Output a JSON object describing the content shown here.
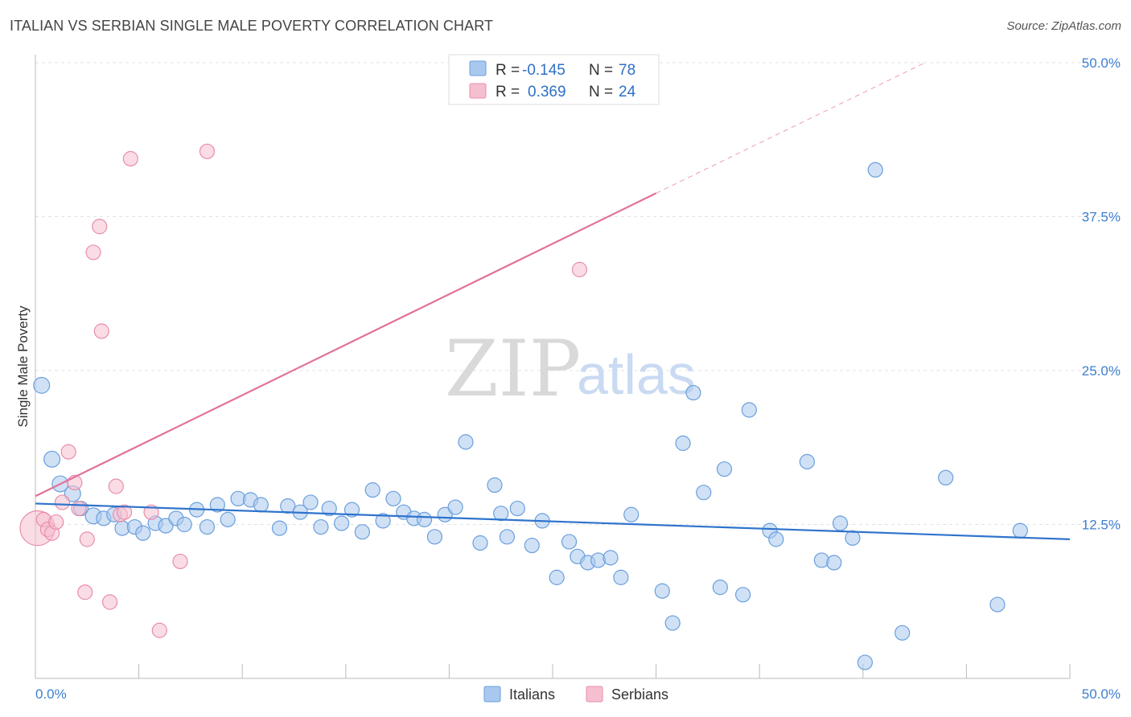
{
  "header": {
    "title": "ITALIAN VS SERBIAN SINGLE MALE POVERTY CORRELATION CHART",
    "source": "Source: ZipAtlas.com"
  },
  "watermark": {
    "zip": "ZIP",
    "atlas": "atlas"
  },
  "legend": {
    "rows": [
      {
        "r_label": "R =",
        "r_value": "-0.145",
        "n_label": "N =",
        "n_value": "78"
      },
      {
        "r_label": "R =",
        "r_value": "0.369",
        "n_label": "N =",
        "n_value": "24"
      }
    ]
  },
  "bottom_legend": {
    "italians": "Italians",
    "serbians": "Serbians"
  },
  "colors": {
    "italians_fill": "#a9c8ef",
    "italians_stroke": "#6a9fdc",
    "italians_line": "#2f73cc",
    "serbians_fill": "#f6bfd0",
    "serbians_stroke": "#e98dab",
    "serbians_line": "#e2719a"
  },
  "chart_data": {
    "type": "scatter",
    "xlabel": "",
    "ylabel": "Single Male Poverty",
    "xlim": [
      0,
      50
    ],
    "ylim": [
      0,
      50
    ],
    "x_tick_labels": [
      "0.0%",
      "50.0%"
    ],
    "y_ticks": [
      12.5,
      25.0,
      37.5,
      50.0
    ],
    "y_tick_labels": [
      "12.5%",
      "25.0%",
      "37.5%",
      "50.0%"
    ],
    "grid": "horizontal dashed",
    "legend_position": "top-center",
    "series": [
      {
        "name": "Italians",
        "r": -0.145,
        "n": 78,
        "trend": {
          "x": [
            0,
            50
          ],
          "y": [
            14.2,
            11.3
          ]
        },
        "points": [
          [
            0.3,
            23.8,
            1.1
          ],
          [
            0.8,
            17.8,
            1.1
          ],
          [
            1.2,
            15.8,
            1.1
          ],
          [
            1.8,
            15.0,
            1.1
          ],
          [
            2.2,
            13.8,
            1
          ],
          [
            2.8,
            13.2,
            1.1
          ],
          [
            3.3,
            13.0,
            1
          ],
          [
            3.8,
            13.3,
            1
          ],
          [
            4.2,
            12.2,
            1
          ],
          [
            4.8,
            12.3,
            1
          ],
          [
            5.2,
            11.8,
            1
          ],
          [
            5.8,
            12.6,
            1
          ],
          [
            6.3,
            12.4,
            1
          ],
          [
            6.8,
            13.0,
            1
          ],
          [
            7.2,
            12.5,
            1
          ],
          [
            7.8,
            13.7,
            1
          ],
          [
            8.3,
            12.3,
            1
          ],
          [
            8.8,
            14.1,
            1
          ],
          [
            9.3,
            12.9,
            1
          ],
          [
            9.8,
            14.6,
            1
          ],
          [
            10.4,
            14.5,
            1
          ],
          [
            10.9,
            14.1,
            1
          ],
          [
            11.8,
            12.2,
            1
          ],
          [
            12.2,
            14.0,
            1
          ],
          [
            12.8,
            13.5,
            1
          ],
          [
            13.3,
            14.3,
            1
          ],
          [
            13.8,
            12.3,
            1
          ],
          [
            14.2,
            13.8,
            1
          ],
          [
            14.8,
            12.6,
            1
          ],
          [
            15.3,
            13.7,
            1
          ],
          [
            15.8,
            11.9,
            1
          ],
          [
            16.3,
            15.3,
            1
          ],
          [
            16.8,
            12.8,
            1
          ],
          [
            17.3,
            14.6,
            1
          ],
          [
            17.8,
            13.5,
            1
          ],
          [
            18.3,
            13.0,
            1
          ],
          [
            18.8,
            12.9,
            1
          ],
          [
            19.3,
            11.5,
            1
          ],
          [
            19.8,
            13.3,
            1
          ],
          [
            20.3,
            13.9,
            1
          ],
          [
            20.8,
            19.2,
            1
          ],
          [
            21.5,
            11.0,
            1
          ],
          [
            22.2,
            15.7,
            1
          ],
          [
            22.5,
            13.4,
            1
          ],
          [
            22.8,
            11.5,
            1
          ],
          [
            23.3,
            13.8,
            1
          ],
          [
            24.0,
            10.8,
            1
          ],
          [
            24.5,
            12.8,
            1
          ],
          [
            25.2,
            8.2,
            1
          ],
          [
            25.8,
            11.1,
            1
          ],
          [
            26.2,
            9.9,
            1
          ],
          [
            26.7,
            9.4,
            1
          ],
          [
            27.2,
            9.6,
            1
          ],
          [
            27.8,
            9.8,
            1
          ],
          [
            28.3,
            8.2,
            1
          ],
          [
            28.8,
            13.3,
            1
          ],
          [
            30.3,
            7.1,
            1
          ],
          [
            30.8,
            4.5,
            1
          ],
          [
            31.3,
            19.1,
            1
          ],
          [
            31.8,
            23.2,
            1
          ],
          [
            32.3,
            15.1,
            1
          ],
          [
            33.1,
            7.4,
            1
          ],
          [
            33.3,
            17.0,
            1
          ],
          [
            34.2,
            6.8,
            1
          ],
          [
            34.5,
            21.8,
            1
          ],
          [
            35.5,
            12.0,
            1
          ],
          [
            35.8,
            11.3,
            1
          ],
          [
            37.3,
            17.6,
            1
          ],
          [
            38.0,
            9.6,
            1
          ],
          [
            38.6,
            9.4,
            1
          ],
          [
            38.9,
            12.6,
            1
          ],
          [
            39.5,
            11.4,
            1
          ],
          [
            40.1,
            1.3,
            1
          ],
          [
            40.6,
            41.3,
            1
          ],
          [
            41.9,
            3.7,
            1
          ],
          [
            44.0,
            16.3,
            1
          ],
          [
            46.5,
            6.0,
            1
          ],
          [
            47.6,
            12.0,
            1
          ]
        ]
      },
      {
        "name": "Serbians",
        "r": 0.369,
        "n": 24,
        "trend": {
          "x": [
            0,
            30
          ],
          "y": [
            14.8,
            39.4
          ]
        },
        "trend_dashed": {
          "x": [
            30,
            43
          ],
          "y": [
            39.4,
            50.0
          ]
        },
        "points": [
          [
            0.1,
            12.2,
            2.4
          ],
          [
            0.4,
            12.9,
            1
          ],
          [
            0.6,
            12.1,
            1
          ],
          [
            0.8,
            11.8,
            1
          ],
          [
            1.0,
            12.7,
            1
          ],
          [
            1.3,
            14.3,
            1
          ],
          [
            1.6,
            18.4,
            1
          ],
          [
            1.9,
            15.9,
            1
          ],
          [
            2.1,
            13.8,
            1
          ],
          [
            2.4,
            7.0,
            1
          ],
          [
            2.5,
            11.3,
            1
          ],
          [
            2.8,
            34.6,
            1
          ],
          [
            3.1,
            36.7,
            1
          ],
          [
            3.2,
            28.2,
            1
          ],
          [
            3.6,
            6.2,
            1
          ],
          [
            3.9,
            15.6,
            1
          ],
          [
            4.1,
            13.3,
            1
          ],
          [
            4.3,
            13.5,
            1
          ],
          [
            4.6,
            42.2,
            1
          ],
          [
            5.6,
            13.5,
            1
          ],
          [
            6.0,
            3.9,
            1
          ],
          [
            7.0,
            9.5,
            1
          ],
          [
            8.3,
            42.8,
            1
          ],
          [
            26.3,
            33.2,
            1
          ]
        ]
      }
    ]
  }
}
